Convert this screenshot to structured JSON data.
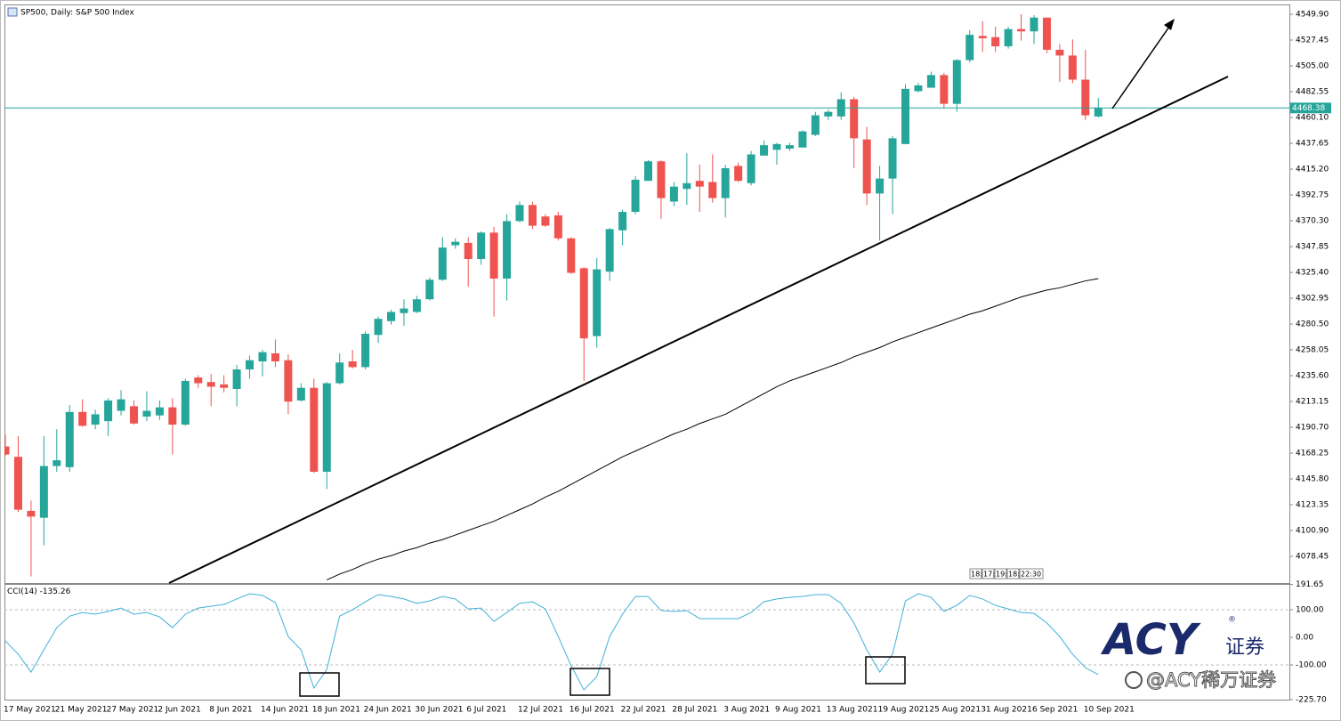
{
  "chart_data": [
    {
      "type": "candlestick",
      "title": "SP500, Daily:  S&P 500 Index",
      "categories": [
        "17 May 2021",
        null,
        null,
        null,
        "21 May 2021",
        null,
        null,
        null,
        "27 May 2021",
        null,
        null,
        null,
        "2 Jun 2021",
        null,
        null,
        null,
        "8 Jun 2021",
        null,
        null,
        null,
        "14 Jun 2021",
        null,
        null,
        null,
        "18 Jun 2021",
        null,
        null,
        null,
        "24 Jun 2021",
        null,
        null,
        null,
        "30 Jun 2021",
        null,
        null,
        null,
        "6 Jul 2021",
        null,
        null,
        null,
        "12 Jul 2021",
        null,
        null,
        null,
        "16 Jul 2021",
        null,
        null,
        null,
        "22 Jul 2021",
        null,
        null,
        null,
        "28 Jul 2021",
        null,
        null,
        null,
        "3 Aug 2021",
        null,
        null,
        null,
        "9 Aug 2021",
        null,
        null,
        null,
        "13 Aug 2021",
        null,
        null,
        null,
        "19 Aug 2021",
        null,
        null,
        null,
        "25 Aug 2021",
        null,
        null,
        null,
        "31 Aug 2021",
        null,
        null,
        null,
        "6 Sep 2021",
        null,
        null,
        null,
        "10 Sep 2021",
        null
      ],
      "open": [
        4174,
        4165,
        4118,
        4112,
        4157,
        4156,
        4204,
        4193,
        4196,
        4205,
        4209,
        4200,
        4201,
        4208,
        4193,
        4234,
        4230,
        4228,
        4224,
        4241,
        4248,
        4255,
        4249,
        4214,
        4225,
        4152,
        4229,
        4248,
        4243,
        4271,
        4283,
        4290,
        4291,
        4302,
        4319,
        4349,
        4351,
        4337,
        4360,
        4320,
        4370,
        4384,
        4374,
        4375,
        4355,
        4329,
        4270,
        4326,
        4362,
        4378,
        4405,
        4422,
        4387,
        4398,
        4405,
        4404,
        4390,
        4418,
        4403,
        4427,
        4432,
        4433,
        4434,
        4445,
        4461,
        4461,
        4476,
        4441,
        4394,
        4407,
        4437,
        4483,
        4486,
        4497,
        4472,
        4510,
        4531,
        4530,
        4522,
        4537,
        4535,
        4547,
        4519,
        4514,
        4493,
        4461
      ],
      "high": [
        4184,
        4183,
        4127,
        4183,
        4189,
        4210,
        4215,
        4206,
        4216,
        4223,
        4214,
        4222,
        4214,
        4216,
        4233,
        4236,
        4237,
        4236,
        4245,
        4253,
        4258,
        4267,
        4254,
        4229,
        4233,
        4230,
        4255,
        4258,
        4274,
        4287,
        4293,
        4302,
        4305,
        4321,
        4356,
        4355,
        4356,
        4361,
        4365,
        4376,
        4387,
        4387,
        4376,
        4378,
        4356,
        4330,
        4338,
        4364,
        4380,
        4409,
        4423,
        4423,
        4404,
        4429,
        4419,
        4428,
        4419,
        4421,
        4431,
        4440,
        4438,
        4438,
        4449,
        4465,
        4467,
        4482,
        4478,
        4452,
        4418,
        4444,
        4489,
        4490,
        4500,
        4499,
        4511,
        4536,
        4544,
        4539,
        4539,
        4550,
        4549,
        4547,
        4524,
        4528,
        4519,
        4477
      ],
      "low": [
        4166,
        4117,
        4061,
        4088,
        4152,
        4152,
        4191,
        4189,
        4183,
        4201,
        4193,
        4196,
        4197,
        4167,
        4192,
        4225,
        4209,
        4221,
        4209,
        4233,
        4235,
        4243,
        4202,
        4213,
        4151,
        4137,
        4228,
        4242,
        4241,
        4264,
        4280,
        4279,
        4290,
        4301,
        4318,
        4346,
        4313,
        4332,
        4287,
        4301,
        4369,
        4363,
        4365,
        4353,
        4324,
        4231,
        4260,
        4318,
        4349,
        4376,
        4405,
        4372,
        4383,
        4384,
        4378,
        4386,
        4373,
        4404,
        4401,
        4427,
        4419,
        4431,
        4434,
        4444,
        4458,
        4458,
        4416,
        4384,
        4353,
        4376,
        4437,
        4482,
        4486,
        4468,
        4465,
        4508,
        4517,
        4517,
        4520,
        4527,
        4524,
        4516,
        4491,
        4490,
        4458,
        4460
      ],
      "close": [
        4167,
        4119,
        4113,
        4157,
        4162,
        4204,
        4192,
        4202,
        4214,
        4215,
        4194,
        4205,
        4208,
        4193,
        4231,
        4229,
        4226,
        4225,
        4241,
        4249,
        4256,
        4248,
        4213,
        4225,
        4152,
        4229,
        4247,
        4243,
        4272,
        4285,
        4291,
        4294,
        4302,
        4319,
        4347,
        4352,
        4337,
        4360,
        4320,
        4370,
        4384,
        4366,
        4366,
        4355,
        4325,
        4268,
        4328,
        4363,
        4378,
        4406,
        4422,
        4390,
        4400,
        4403,
        4400,
        4390,
        4416,
        4405,
        4428,
        4436,
        4437,
        4436,
        4448,
        4462,
        4465,
        4476,
        4442,
        4394,
        4407,
        4442,
        4485,
        4488,
        4497,
        4472,
        4510,
        4532,
        4529,
        4522,
        4537,
        4535,
        4547,
        4519,
        4514,
        4493,
        4462,
        4468.38
      ],
      "up_color": "#26a69a",
      "down_color": "#ef5350",
      "last_price_color": "#26a69a",
      "series": [
        {
          "color": "#000000",
          "values": [
            null,
            null,
            null,
            null,
            null,
            null,
            null,
            null,
            null,
            null,
            null,
            null,
            null,
            null,
            null,
            null,
            null,
            null,
            null,
            null,
            null,
            null,
            null,
            null,
            null,
            4058,
            4063,
            4067,
            4072,
            4076,
            4079,
            4083,
            4086,
            4090,
            4093,
            4097,
            4101,
            4105,
            4109,
            4114,
            4119,
            4124,
            4130,
            4135,
            4141,
            4147,
            4153,
            4159,
            4165,
            4170,
            4175,
            4180,
            4185,
            4189,
            4194,
            4198,
            4202,
            4208,
            4214,
            4220,
            4226,
            4231,
            4235,
            4239,
            4243,
            4247,
            4252,
            4256,
            4260,
            4265,
            4269,
            4273,
            4277,
            4281,
            4285,
            4289,
            4292,
            4296,
            4300,
            4304,
            4307,
            4310,
            4312,
            4315,
            4318,
            4320
          ]
        }
      ],
      "ylim": [
        4055.23,
        4558.42
      ],
      "yticks": [
        {
          "value": 4549.9,
          "label": "4549.90"
        },
        4527.45,
        {
          "value": 4505,
          "label": "4505.00"
        },
        4482.55,
        {
          "value": 4460.1,
          "label": "4460.10"
        },
        4437.65,
        {
          "value": 4415.2,
          "label": "4415.20"
        },
        4392.75,
        {
          "value": 4370.3,
          "label": "4370.30"
        },
        4347.85,
        {
          "value": 4325.4,
          "label": "4325.40"
        },
        4302.95,
        {
          "value": 4280.5,
          "label": "4280.50"
        },
        4258.05,
        {
          "value": 4235.6,
          "label": "4235.60"
        },
        4213.15,
        {
          "value": 4190.7,
          "label": "4190.70"
        },
        4168.25,
        {
          "value": 4145.8,
          "label": "4145.80"
        },
        4123.35,
        {
          "value": 4100.9,
          "label": "4100.90"
        },
        4078.45
      ],
      "grid": false,
      "time_tags": [
        "18:",
        "17:",
        "19:",
        "18:",
        "22:30"
      ]
    },
    {
      "type": "line",
      "title": "CCI(14)",
      "series": [
        {
          "color": "#3fb1d8",
          "values": [
            -13,
            -61,
            -126,
            -45,
            35,
            77,
            90,
            84,
            94,
            106,
            84,
            90,
            74,
            35,
            84,
            106,
            113,
            119,
            139,
            158,
            152,
            126,
            3,
            -45,
            -184,
            -116,
            77,
            100,
            129,
            155,
            148,
            139,
            123,
            132,
            148,
            139,
            103,
            106,
            58,
            90,
            123,
            129,
            103,
            3,
            -103,
            -190,
            -142,
            3,
            84,
            148,
            148,
            97,
            94,
            97,
            68,
            68,
            68,
            68,
            90,
            129,
            139,
            145,
            148,
            155,
            155,
            123,
            52,
            -45,
            -126,
            -61,
            132,
            158,
            145,
            94,
            116,
            152,
            139,
            116,
            103,
            90,
            87,
            52,
            3,
            -61,
            -110,
            -135.26
          ]
        }
      ],
      "ylim": [
        -225.7,
        191.65
      ],
      "yticks": [
        191.65,
        {
          "value": 100,
          "label": "100.00"
        },
        {
          "value": 0,
          "label": "0.00"
        },
        {
          "value": -100,
          "label": "-100.00"
        },
        {
          "value": -225.7,
          "label": "-225.70"
        }
      ],
      "levels": [
        100,
        -100
      ],
      "grid": false
    }
  ],
  "watermark": {
    "logo": "ACY",
    "logo_cn": "证券",
    "mark": "®",
    "handle": "@ACY稀万证券"
  }
}
